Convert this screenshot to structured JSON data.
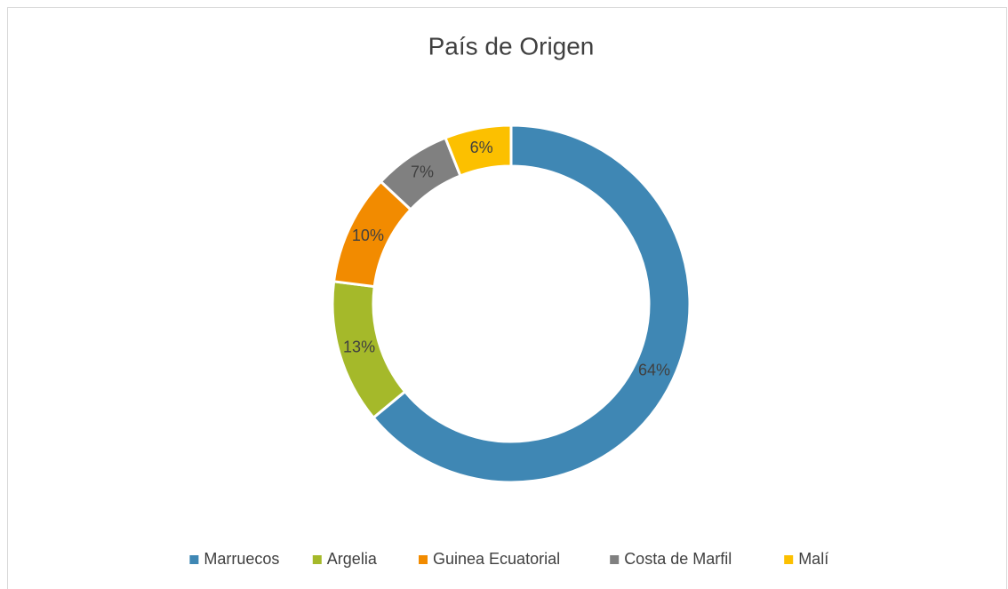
{
  "chart_data": {
    "type": "donut",
    "title": "País de Origen",
    "categories": [
      "Marruecos",
      "Argelia",
      "Guinea Ecuatorial",
      "Costa de Marfil",
      "Malí"
    ],
    "values": [
      64,
      13,
      10,
      7,
      6
    ],
    "value_labels": [
      "64%",
      "13%",
      "10%",
      "7%",
      "6%"
    ],
    "colors": [
      "#3f87b4",
      "#a5b92a",
      "#f28b00",
      "#808080",
      "#fcc000"
    ],
    "legend": "bottom"
  }
}
